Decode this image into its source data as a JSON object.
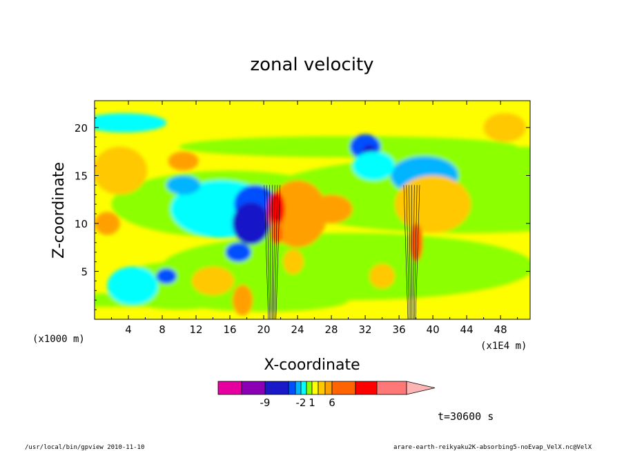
{
  "chart_data": {
    "type": "heatmap",
    "title": "zonal velocity",
    "xlabel": "X-coordinate",
    "ylabel": "Z-coordinate",
    "x_units_left": "(x1000 m)",
    "x_units_right": "(x1E4 m)",
    "xlim": [
      0,
      51.5
    ],
    "ylim": [
      0,
      22.8
    ],
    "x_ticks": [
      "4",
      "8",
      "12",
      "16",
      "20",
      "24",
      "28",
      "32",
      "36",
      "40",
      "44",
      "48"
    ],
    "y_ticks": [
      "5",
      "10",
      "15",
      "20"
    ],
    "time_label": "t=30600 s",
    "footer_left": "/usr/local/bin/gpview  2010-11-10",
    "footer_right": "arare-earth-reikyaku2K-absorbing5-noEvap_VelX.nc@VelX",
    "colorbar": {
      "colors": [
        "#e600a0",
        "#8b00b4",
        "#1919c8",
        "#0050ff",
        "#00b4ff",
        "#00ffff",
        "#8cff00",
        "#ffff00",
        "#ffc800",
        "#ffa000",
        "#ff6400",
        "#ff0000",
        "#ff7878",
        "#ffb4b4"
      ],
      "tick_labels": [
        "-9",
        "-2",
        "1",
        "6"
      ]
    }
  }
}
